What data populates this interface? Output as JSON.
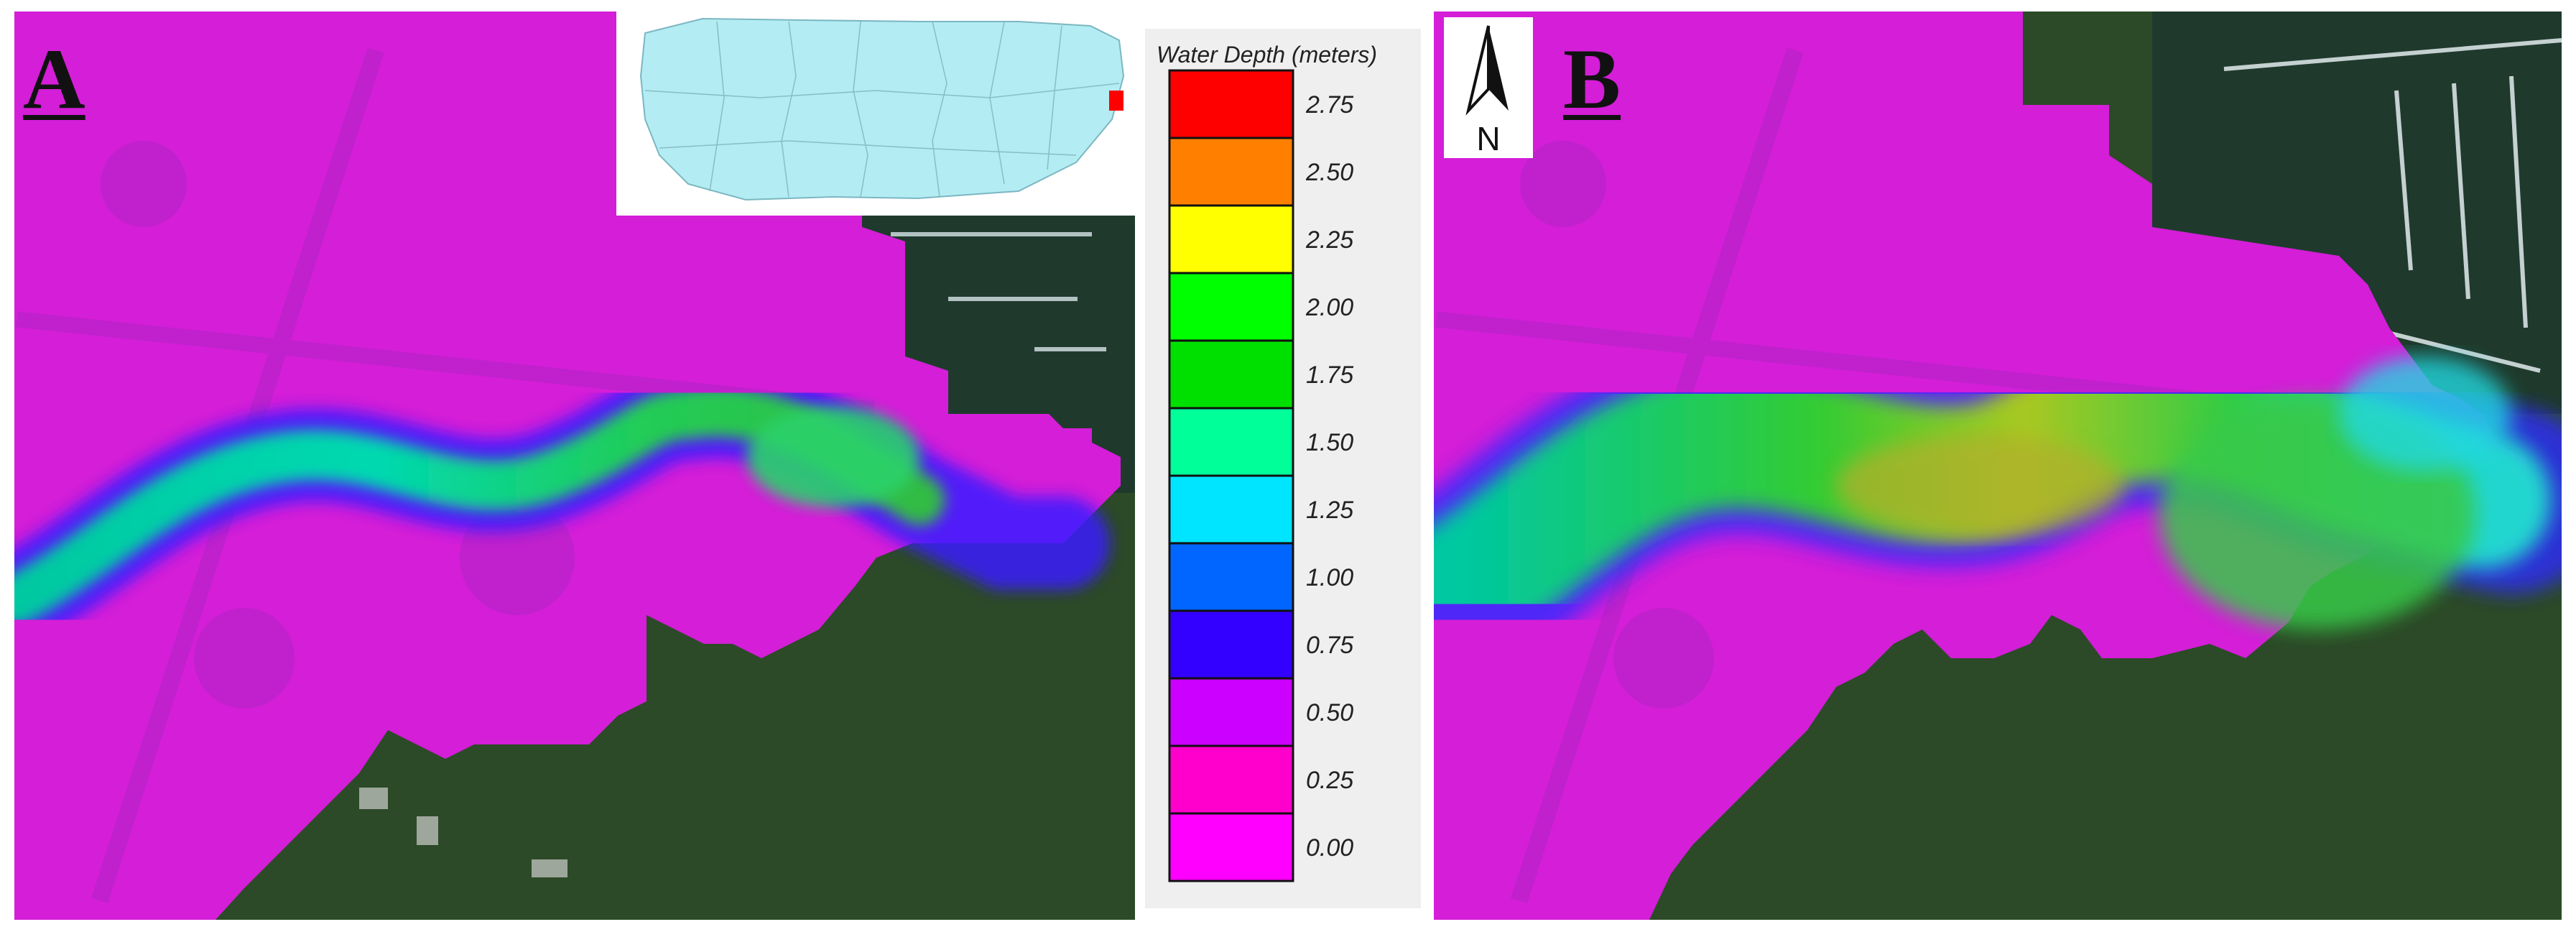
{
  "panels": {
    "a": {
      "letter": "A"
    },
    "b": {
      "letter": "B"
    }
  },
  "north_arrow": {
    "letter": "N"
  },
  "legend": {
    "title": "Water Depth (meters)",
    "swatches": [
      {
        "label": "2.75",
        "color": "#ff0000"
      },
      {
        "label": "2.50",
        "color": "#ff8000"
      },
      {
        "label": "2.25",
        "color": "#ffff00"
      },
      {
        "label": "2.00",
        "color": "#00ff00"
      },
      {
        "label": "1.75",
        "color": "#00e000"
      },
      {
        "label": "1.50",
        "color": "#00ff99"
      },
      {
        "label": "1.25",
        "color": "#00e5ff"
      },
      {
        "label": "1.00",
        "color": "#0066ff"
      },
      {
        "label": "0.75",
        "color": "#3300ff"
      },
      {
        "label": "0.50",
        "color": "#cc00ff"
      },
      {
        "label": "0.25",
        "color": "#ff00cc"
      },
      {
        "label": "0.00",
        "color": "#ff00ff"
      }
    ]
  },
  "inset": {
    "land_color": "#b3ecf2",
    "site_color": "#ff0000"
  }
}
